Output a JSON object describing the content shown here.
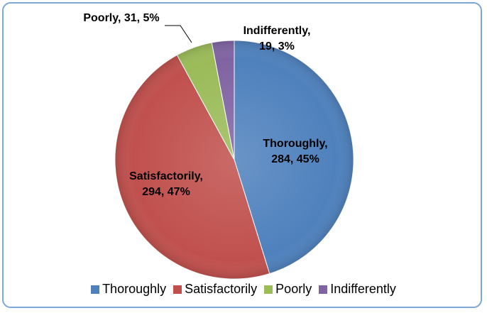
{
  "chart_data": {
    "type": "pie",
    "categories": [
      "Thoroughly",
      "Satisfactorily",
      "Poorly",
      "Indifferently"
    ],
    "values": [
      284,
      294,
      31,
      19
    ],
    "value_labels": [
      "Thoroughly, 284, 45%",
      "Satisfactorily, 294, 47%",
      "Poorly, 31, 5%",
      "Indifferently, 19, 3%"
    ],
    "colors": [
      "#4f81bd",
      "#c0504d",
      "#9bbb59",
      "#8064a2"
    ],
    "legend": "bottom"
  }
}
